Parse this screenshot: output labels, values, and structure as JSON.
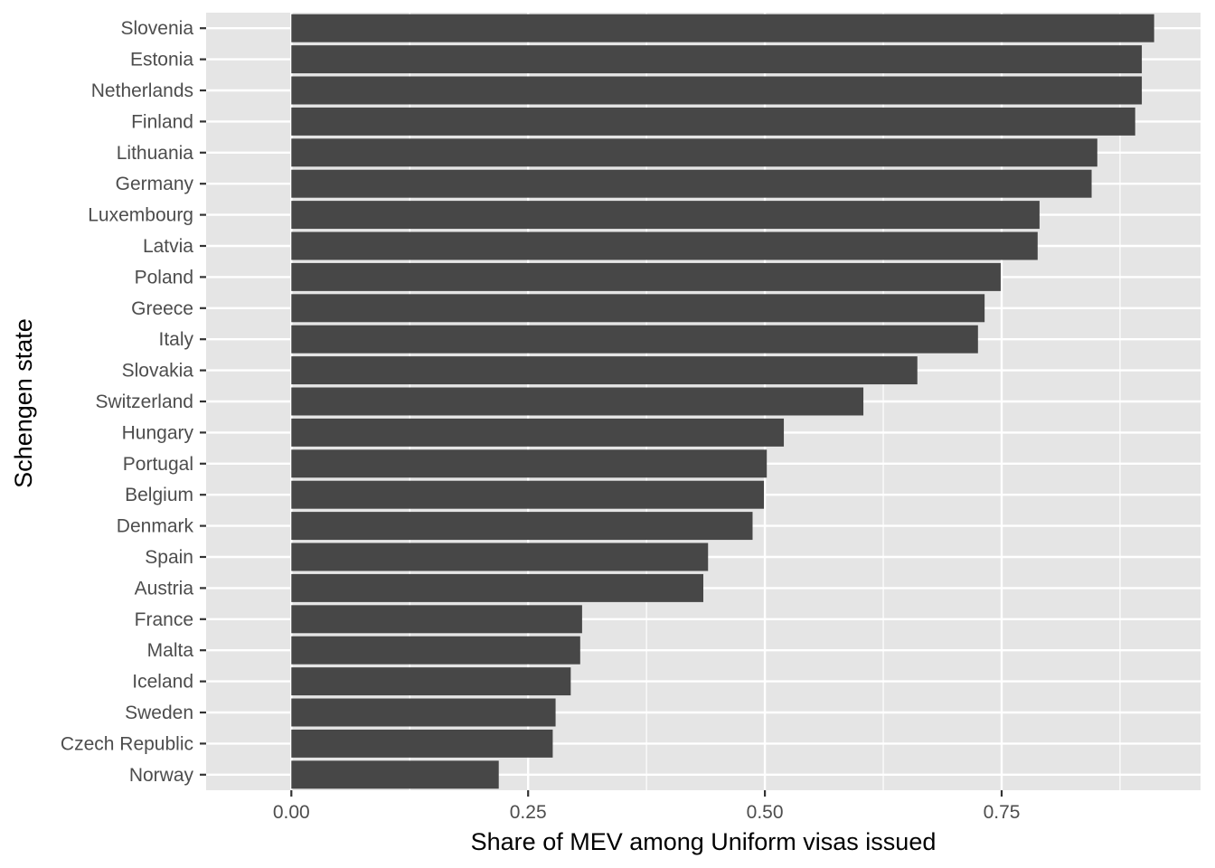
{
  "chart_data": {
    "type": "bar",
    "orientation": "horizontal",
    "xlabel": "Share of MEV among Uniform visas issued",
    "ylabel": "Schengen state",
    "xlim": [
      -0.09,
      0.96
    ],
    "x_ticks": [
      0.0,
      0.25,
      0.5,
      0.75
    ],
    "x_tick_labels": [
      "0.00",
      "0.25",
      "0.50",
      "0.75"
    ],
    "grid": true,
    "legend": "none",
    "colors": {
      "bar": "#474747",
      "panel": "#e5e5e5",
      "grid": "#ffffff"
    },
    "categories": [
      "Slovenia",
      "Estonia",
      "Netherlands",
      "Finland",
      "Lithuania",
      "Germany",
      "Luxembourg",
      "Latvia",
      "Poland",
      "Greece",
      "Italy",
      "Slovakia",
      "Switzerland",
      "Hungary",
      "Portugal",
      "Belgium",
      "Denmark",
      "Spain",
      "Austria",
      "France",
      "Malta",
      "Iceland",
      "Sweden",
      "Czech Republic",
      "Norway"
    ],
    "values": [
      0.911,
      0.898,
      0.898,
      0.891,
      0.851,
      0.845,
      0.79,
      0.788,
      0.749,
      0.732,
      0.725,
      0.661,
      0.604,
      0.52,
      0.502,
      0.499,
      0.487,
      0.44,
      0.435,
      0.307,
      0.305,
      0.295,
      0.279,
      0.276,
      0.219
    ]
  }
}
